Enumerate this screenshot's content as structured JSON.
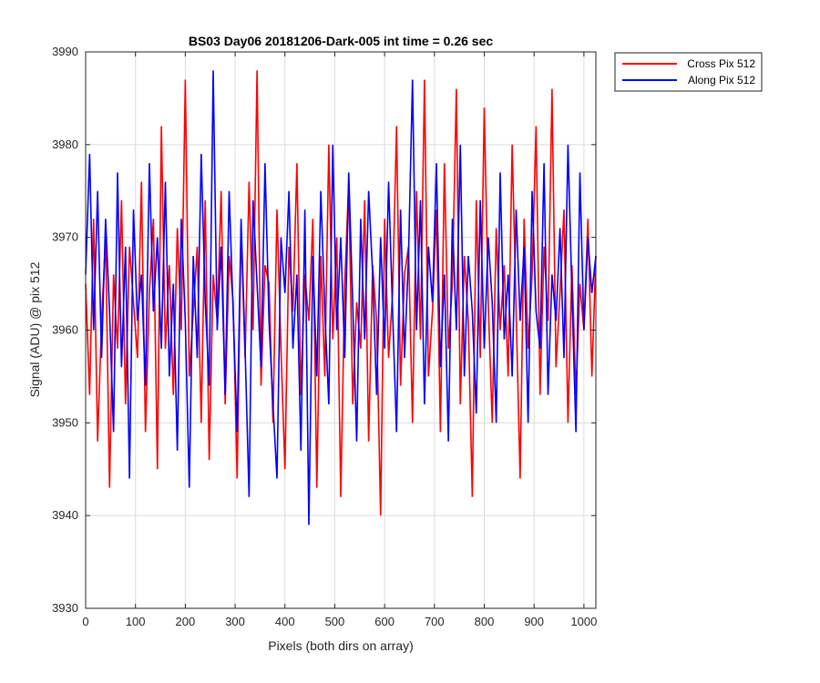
{
  "chart_data": {
    "type": "line",
    "title": "BS03 Day06 20181206-Dark-005 int time = 0.26 sec",
    "xlabel": "Pixels (both dirs on array)",
    "ylabel": "Signal (ADU) @ pix 512",
    "xlim": [
      0,
      1024
    ],
    "ylim": [
      3930,
      3990
    ],
    "xticks": [
      0,
      100,
      200,
      300,
      400,
      500,
      600,
      700,
      800,
      900,
      1000
    ],
    "yticks": [
      3930,
      3940,
      3950,
      3960,
      3970,
      3980,
      3990
    ],
    "xtick_labels": [
      "0",
      "100",
      "200",
      "300",
      "400",
      "500",
      "600",
      "700",
      "800",
      "900",
      "1000"
    ],
    "ytick_labels": [
      "3930",
      "3940",
      "3950",
      "3960",
      "3970",
      "3980",
      "3990"
    ],
    "grid": true,
    "legend_position": "outside-top-right",
    "series": [
      {
        "name": "Cross Pix 512",
        "color": "#ff0000",
        "sample_step": 8,
        "values": [
          3965,
          3953,
          3972,
          3948,
          3961,
          3970,
          3943,
          3966,
          3958,
          3974,
          3952,
          3969,
          3963,
          3957,
          3976,
          3949,
          3964,
          3972,
          3945,
          3982,
          3958,
          3967,
          3953,
          3971,
          3960,
          3987,
          3955,
          3962,
          3969,
          3950,
          3974,
          3946,
          3966,
          3961,
          3975,
          3952,
          3968,
          3963,
          3944,
          3971,
          3957,
          3976,
          3960,
          3988,
          3954,
          3967,
          3965,
          3950,
          3973,
          3958,
          3945,
          3969,
          3962,
          3978,
          3953,
          3966,
          3961,
          3972,
          3943,
          3968,
          3955,
          3980,
          3959,
          3970,
          3942,
          3965,
          3976,
          3952,
          3963,
          3958,
          3974,
          3948,
          3967,
          3961,
          3940,
          3972,
          3957,
          3964,
          3982,
          3954,
          3966,
          3969,
          3950,
          3975,
          3959,
          3987,
          3955,
          3962,
          3973,
          3949,
          3978,
          3958,
          3965,
          3986,
          3952,
          3968,
          3961,
          3942,
          3974,
          3957,
          3984,
          3963,
          3950,
          3971,
          3960,
          3967,
          3955,
          3980,
          3962,
          3944,
          3972,
          3958,
          3966,
          3982,
          3953,
          3969,
          3961,
          3986,
          3956,
          3964,
          3973,
          3950,
          3967,
          3953,
          3965,
          3960,
          3972,
          3955,
          3968
        ]
      },
      {
        "name": "Along Pix 512",
        "color": "#0000ff",
        "sample_step": 8,
        "values": [
          3966,
          3979,
          3960,
          3975,
          3957,
          3972,
          3962,
          3949,
          3977,
          3956,
          3969,
          3944,
          3973,
          3961,
          3966,
          3954,
          3978,
          3962,
          3970,
          3958,
          3976,
          3955,
          3965,
          3947,
          3972,
          3961,
          3943,
          3968,
          3957,
          3979,
          3963,
          3954,
          3988,
          3960,
          3969,
          3953,
          3975,
          3962,
          3949,
          3972,
          3958,
          3942,
          3974,
          3965,
          3956,
          3978,
          3961,
          3952,
          3944,
          3970,
          3964,
          3975,
          3958,
          3966,
          3947,
          3973,
          3939,
          3968,
          3955,
          3975,
          3962,
          3952,
          3980,
          3960,
          3970,
          3957,
          3977,
          3963,
          3948,
          3972,
          3959,
          3975,
          3966,
          3953,
          3970,
          3958,
          3976,
          3962,
          3949,
          3973,
          3957,
          3968,
          3987,
          3960,
          3974,
          3952,
          3969,
          3963,
          3978,
          3956,
          3966,
          3948,
          3972,
          3960,
          3980,
          3955,
          3968,
          3962,
          3951,
          3974,
          3958,
          3970,
          3963,
          3950,
          3977,
          3959,
          3966,
          3955,
          3973,
          3961,
          3969,
          3950,
          3975,
          3962,
          3958,
          3978,
          3953,
          3966,
          3961,
          3971,
          3957,
          3980,
          3964,
          3949,
          3977,
          3960,
          3970,
          3964,
          3968
        ]
      }
    ]
  }
}
